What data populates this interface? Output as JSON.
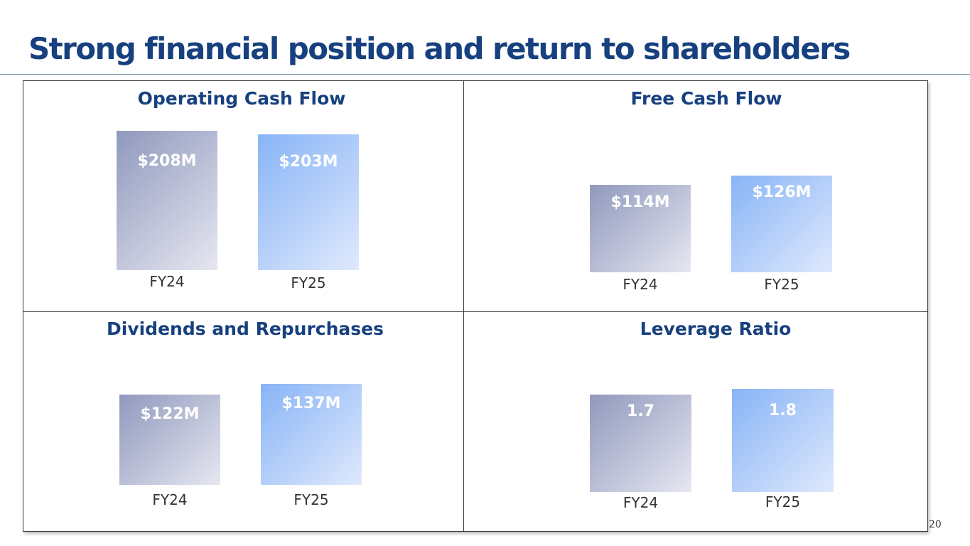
{
  "title": "Strong financial position and return to shareholders",
  "page_number": "20",
  "colors": {
    "title": "#17407e",
    "fy24_bar": "#9099bd",
    "fy25_bar": "#88b4f6",
    "border": "#3b3b3b"
  },
  "chart_data": [
    {
      "type": "bar",
      "title": "Operating Cash Flow",
      "categories": [
        "FY24",
        "FY25"
      ],
      "values": [
        208,
        203
      ],
      "value_labels": [
        "$208M",
        "$203M"
      ],
      "unit": "$M"
    },
    {
      "type": "bar",
      "title": "Free Cash Flow",
      "categories": [
        "FY24",
        "FY25"
      ],
      "values": [
        114,
        126
      ],
      "value_labels": [
        "$114M",
        "$126M"
      ],
      "unit": "$M"
    },
    {
      "type": "bar",
      "title": "Dividends and Repurchases",
      "categories": [
        "FY24",
        "FY25"
      ],
      "values": [
        122,
        137
      ],
      "value_labels": [
        "$122M",
        "$137M"
      ],
      "unit": "$M"
    },
    {
      "type": "bar",
      "title": "Leverage Ratio",
      "categories": [
        "FY24",
        "FY25"
      ],
      "values": [
        1.7,
        1.8
      ],
      "value_labels": [
        "1.7",
        "1.8"
      ],
      "unit": "x"
    }
  ]
}
